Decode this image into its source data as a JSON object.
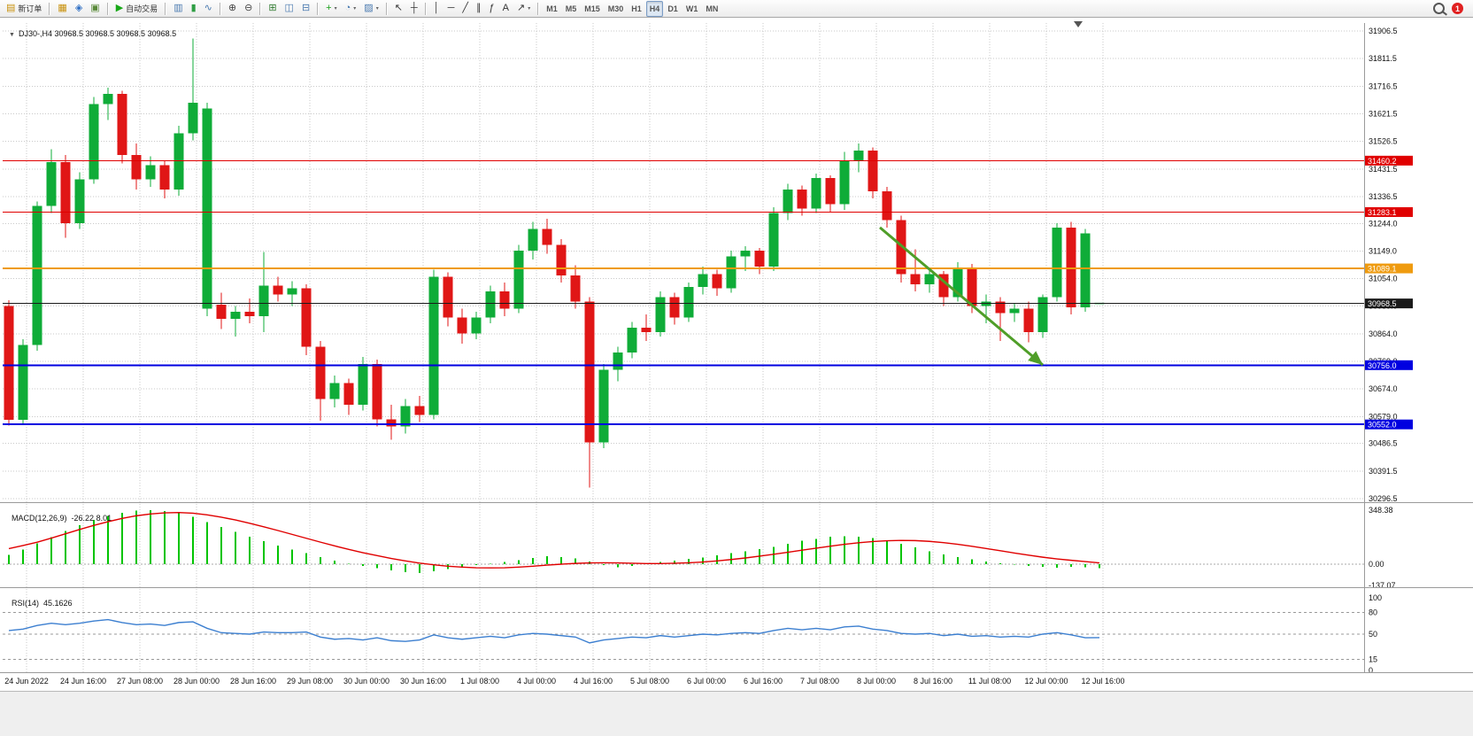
{
  "toolbar": {
    "notification_count": "1",
    "groups": [
      {
        "items": [
          {
            "name": "new-order-button",
            "icon": "new-order-icon",
            "glyph": "▤",
            "color": "#c8900a",
            "label": "新订单"
          }
        ]
      },
      {
        "items": [
          {
            "name": "market-watch-button",
            "icon": "market-watch-icon",
            "glyph": "▦",
            "color": "#c8900a"
          },
          {
            "name": "navigator-button",
            "icon": "navigator-icon",
            "glyph": "◈",
            "color": "#2f6fc4"
          },
          {
            "name": "terminal-button",
            "icon": "terminal-icon",
            "glyph": "▣",
            "color": "#5a8a3a"
          }
        ]
      },
      {
        "items": [
          {
            "name": "autotrading-button",
            "icon": "autotrading-icon",
            "glyph": "▶",
            "color": "#18a818",
            "label": "自动交易"
          }
        ]
      },
      {
        "items": [
          {
            "name": "bar-chart-button",
            "icon": "bar-chart-icon",
            "glyph": "▥",
            "color": "#4a7ab0"
          },
          {
            "name": "candlestick-chart-button",
            "icon": "candlestick-icon",
            "glyph": "▮",
            "color": "#2f9e44"
          },
          {
            "name": "line-chart-button",
            "icon": "line-chart-icon",
            "glyph": "∿",
            "color": "#4a7ab0"
          }
        ]
      },
      {
        "items": [
          {
            "name": "zoom-in-button",
            "icon": "zoom-in-icon",
            "glyph": "⊕",
            "color": "#444"
          },
          {
            "name": "zoom-out-button",
            "icon": "zoom-out-icon",
            "glyph": "⊖",
            "color": "#444"
          }
        ]
      },
      {
        "items": [
          {
            "name": "tile-windows-button",
            "icon": "tile-windows-icon",
            "glyph": "⊞",
            "color": "#2f7a2f"
          },
          {
            "name": "arrange-vertical-button",
            "icon": "arrange-vertical-icon",
            "glyph": "◫",
            "color": "#4a7ab0"
          },
          {
            "name": "arrange-horizontal-button",
            "icon": "arrange-horizontal-icon",
            "glyph": "⊟",
            "color": "#4a7ab0"
          }
        ]
      },
      {
        "items": [
          {
            "name": "indicators-button",
            "icon": "indicators-icon",
            "glyph": "+",
            "color": "#18a018",
            "caret": true
          },
          {
            "name": "periods-button",
            "icon": "periods-icon",
            "glyph": "◔",
            "color": "#4a7ab0",
            "caret": true
          },
          {
            "name": "templates-button",
            "icon": "templates-icon",
            "glyph": "▨",
            "color": "#4a7ab0",
            "caret": true
          }
        ]
      },
      {
        "items": [
          {
            "name": "cursor-button",
            "icon": "cursor-icon",
            "glyph": "↖",
            "color": "#333"
          },
          {
            "name": "crosshair-button",
            "icon": "crosshair-icon",
            "glyph": "┼",
            "color": "#333"
          }
        ]
      },
      {
        "items": [
          {
            "name": "vertical-line-button",
            "icon": "vertical-line-icon",
            "glyph": "│",
            "color": "#333"
          },
          {
            "name": "horizontal-line-button",
            "icon": "horizontal-line-icon",
            "glyph": "─",
            "color": "#333"
          },
          {
            "name": "trendline-button",
            "icon": "trendline-icon",
            "glyph": "╱",
            "color": "#333"
          },
          {
            "name": "channel-button",
            "icon": "channel-icon",
            "glyph": "∥",
            "color": "#333"
          },
          {
            "name": "fibonacci-button",
            "icon": "fibonacci-icon",
            "glyph": "ƒ",
            "color": "#333"
          },
          {
            "name": "text-button",
            "icon": "text-icon",
            "glyph": "A",
            "color": "#333"
          },
          {
            "name": "arrows-button",
            "icon": "arrows-icon",
            "glyph": "↗",
            "color": "#333",
            "caret": true
          }
        ]
      },
      {
        "items": [
          {
            "name": "timeframe-m1-button",
            "label": "M1",
            "cls": "tf"
          },
          {
            "name": "timeframe-m5-button",
            "label": "M5",
            "cls": "tf"
          },
          {
            "name": "timeframe-m15-button",
            "label": "M15",
            "cls": "tf"
          },
          {
            "name": "timeframe-m30-button",
            "label": "M30",
            "cls": "tf"
          },
          {
            "name": "timeframe-h1-button",
            "label": "H1",
            "cls": "tf"
          },
          {
            "name": "timeframe-h4-button",
            "label": "H4",
            "cls": "tf",
            "active": true
          },
          {
            "name": "timeframe-d1-button",
            "label": "D1",
            "cls": "tf"
          },
          {
            "name": "timeframe-w1-button",
            "label": "W1",
            "cls": "tf"
          },
          {
            "name": "timeframe-mn-button",
            "label": "MN",
            "cls": "tf"
          }
        ]
      }
    ]
  },
  "chart": {
    "title": "DJ30-,H4 30968.5 30968.5 30968.5 30968.5",
    "symbol": "DJ30-",
    "period": "H4",
    "ohlc": {
      "open": "30968.5",
      "high": "30968.5",
      "low": "30968.5",
      "close": "30968.5"
    }
  },
  "chart_data": {
    "type": "candlestick",
    "symbol": "DJ30-",
    "timeframe": "H4",
    "price_range": [
      30296.5,
      31906.5
    ],
    "legend_position": "none",
    "grid": true,
    "colors": {
      "bull": "#0fac38",
      "bear": "#e01616",
      "grid": "#c9c9c9",
      "macd_hist": "#00c400",
      "macd_signal": "#e00000",
      "rsi": "#3c7fd0",
      "line_red": "#e00000",
      "line_orange": "#ef9b0f",
      "line_blue": "#0000e0",
      "bid_line": "#1a1a1a",
      "arrow_green": "#4f9e28"
    },
    "time_labels": [
      "24 Jun 2022",
      "24 Jun 16:00",
      "27 Jun 08:00",
      "28 Jun 00:00",
      "28 Jun 16:00",
      "29 Jun 08:00",
      "30 Jun 00:00",
      "30 Jun 16:00",
      "1 Jul 08:00",
      "4 Jul 00:00",
      "4 Jul 16:00",
      "5 Jul 08:00",
      "6 Jul 00:00",
      "6 Jul 16:00",
      "7 Jul 08:00",
      "8 Jul 00:00",
      "8 Jul 16:00",
      "11 Jul 08:00",
      "12 Jul 00:00",
      "12 Jul 16:00"
    ],
    "price_axis_labels": [
      "31906.5",
      "31811.5",
      "31716.5",
      "31621.5",
      "31526.5",
      "31431.5",
      "31336.5",
      "31244.0",
      "31149.0",
      "31054.0",
      "30959.0",
      "30864.0",
      "30769.0",
      "30674.0",
      "30579.0",
      "30486.5",
      "30391.5",
      "30296.5"
    ],
    "horizontal_lines": [
      {
        "name": "resistance-line-31460",
        "price": 31460.2,
        "label": "31460.2",
        "color": "#e00000",
        "width": 1
      },
      {
        "name": "resistance-line-31283",
        "price": 31283.1,
        "label": "31283.1",
        "color": "#e00000",
        "width": 1
      },
      {
        "name": "pivot-line-31089",
        "price": 31089.1,
        "label": "31089.1",
        "color": "#ef9b0f",
        "width": 2
      },
      {
        "name": "bid-price-line",
        "price": 30968.5,
        "label": "30968.5",
        "color": "#1a1a1a",
        "width": 1
      },
      {
        "name": "support-line-30756",
        "price": 30756.0,
        "label": "30756.0",
        "color": "#0000e0",
        "width": 2
      },
      {
        "name": "support-line-30552",
        "price": 30552.0,
        "label": "30552.0",
        "color": "#0000e0",
        "width": 2
      }
    ],
    "trend_arrow": {
      "from_index": 61.5,
      "from_price": 31230,
      "to_index": 73,
      "to_price": 30757,
      "color": "#4f9e28"
    },
    "candles": [
      [
        30960,
        30980,
        30548,
        30568
      ],
      [
        30568,
        30845,
        30552,
        30825
      ],
      [
        30825,
        31320,
        30805,
        31305
      ],
      [
        31305,
        31500,
        31280,
        31455
      ],
      [
        31455,
        31480,
        31195,
        31245
      ],
      [
        31245,
        31420,
        31225,
        31395
      ],
      [
        31395,
        31680,
        31380,
        31655
      ],
      [
        31655,
        31712,
        31600,
        31690
      ],
      [
        31690,
        31700,
        31450,
        31480
      ],
      [
        31480,
        31520,
        31360,
        31395
      ],
      [
        31395,
        31475,
        31370,
        31445
      ],
      [
        31445,
        31460,
        31330,
        31360
      ],
      [
        31360,
        31580,
        31340,
        31555
      ],
      [
        31555,
        31880,
        31530,
        31660
      ],
      [
        30950,
        31660,
        30925,
        31640
      ],
      [
        30965,
        31005,
        30880,
        30915
      ],
      [
        30915,
        30960,
        30855,
        30940
      ],
      [
        30940,
        30985,
        30900,
        30925
      ],
      [
        30925,
        31145,
        30870,
        31030
      ],
      [
        31030,
        31060,
        30975,
        31000
      ],
      [
        31000,
        31045,
        30960,
        31020
      ],
      [
        31020,
        31035,
        30790,
        30820
      ],
      [
        30820,
        30840,
        30565,
        30640
      ],
      [
        30640,
        30720,
        30610,
        30695
      ],
      [
        30695,
        30710,
        30585,
        30620
      ],
      [
        30620,
        30785,
        30600,
        30760
      ],
      [
        30760,
        30775,
        30545,
        30570
      ],
      [
        30570,
        30620,
        30500,
        30545
      ],
      [
        30545,
        30640,
        30520,
        30615
      ],
      [
        30615,
        30650,
        30560,
        30585
      ],
      [
        30585,
        31085,
        30570,
        31060
      ],
      [
        31060,
        31075,
        30890,
        30920
      ],
      [
        30920,
        30950,
        30830,
        30865
      ],
      [
        30865,
        30940,
        30845,
        30920
      ],
      [
        30920,
        31030,
        30900,
        31010
      ],
      [
        31010,
        31040,
        30925,
        30950
      ],
      [
        30950,
        31170,
        30935,
        31150
      ],
      [
        31150,
        31250,
        31120,
        31225
      ],
      [
        31225,
        31260,
        31140,
        31170
      ],
      [
        31170,
        31190,
        31040,
        31065
      ],
      [
        31065,
        31100,
        30950,
        30975
      ],
      [
        30975,
        30990,
        30335,
        30490
      ],
      [
        30490,
        30760,
        30470,
        30740
      ],
      [
        30740,
        30820,
        30700,
        30800
      ],
      [
        30800,
        30905,
        30780,
        30885
      ],
      [
        30885,
        30930,
        30840,
        30870
      ],
      [
        30870,
        31010,
        30855,
        30990
      ],
      [
        30990,
        31005,
        30895,
        30920
      ],
      [
        30920,
        31040,
        30905,
        31025
      ],
      [
        31025,
        31095,
        31000,
        31070
      ],
      [
        31070,
        31085,
        30995,
        31020
      ],
      [
        31020,
        31150,
        31005,
        31130
      ],
      [
        31130,
        31165,
        31080,
        31150
      ],
      [
        31150,
        31160,
        31070,
        31095
      ],
      [
        31095,
        31300,
        31080,
        31280
      ],
      [
        31280,
        31380,
        31255,
        31360
      ],
      [
        31360,
        31375,
        31270,
        31295
      ],
      [
        31295,
        31415,
        31280,
        31400
      ],
      [
        31400,
        31410,
        31285,
        31310
      ],
      [
        31310,
        31490,
        31290,
        31460
      ],
      [
        31460,
        31520,
        31420,
        31495
      ],
      [
        31495,
        31505,
        31330,
        31355
      ],
      [
        31355,
        31370,
        31230,
        31255
      ],
      [
        31255,
        31270,
        31040,
        31070
      ],
      [
        31070,
        31155,
        31010,
        31035
      ],
      [
        31035,
        31090,
        31005,
        31070
      ],
      [
        31070,
        31080,
        30960,
        30990
      ],
      [
        30990,
        31110,
        30975,
        31090
      ],
      [
        31090,
        31105,
        30935,
        30960
      ],
      [
        30960,
        31000,
        30900,
        30975
      ],
      [
        30975,
        30990,
        30840,
        30935
      ],
      [
        30935,
        30970,
        30905,
        30950
      ],
      [
        30950,
        30975,
        30835,
        30870
      ],
      [
        30870,
        31000,
        30850,
        30990
      ],
      [
        30990,
        31245,
        30975,
        31230
      ],
      [
        31230,
        31250,
        30930,
        30955
      ],
      [
        30955,
        31225,
        30940,
        31210
      ],
      [
        30968.5,
        30968.5,
        30968.5,
        30968.5
      ]
    ],
    "macd": {
      "label": "MACD(12,26,9)",
      "values_text": "-26.22 8.01",
      "axis_labels": [
        "348.38",
        "0.00",
        "-137.07"
      ],
      "histogram": [
        60,
        95,
        135,
        175,
        215,
        250,
        285,
        310,
        330,
        345,
        348,
        342,
        328,
        305,
        272,
        240,
        208,
        178,
        148,
        120,
        94,
        70,
        46,
        24,
        4,
        -12,
        -26,
        -40,
        -50,
        -56,
        -46,
        -32,
        -18,
        -6,
        4,
        14,
        26,
        40,
        50,
        46,
        36,
        18,
        -6,
        -20,
        -10,
        4,
        14,
        24,
        34,
        44,
        56,
        70,
        84,
        96,
        112,
        130,
        150,
        164,
        176,
        181,
        178,
        168,
        152,
        132,
        108,
        84,
        62,
        46,
        30,
        16,
        6,
        -4,
        -12,
        -18,
        -22,
        -16,
        -20,
        -26.22
      ],
      "signal": [
        100,
        120,
        142,
        168,
        196,
        224,
        250,
        274,
        295,
        312,
        324,
        331,
        333,
        329,
        318,
        303,
        285,
        264,
        241,
        217,
        192,
        167,
        142,
        118,
        95,
        74,
        55,
        37,
        21,
        7,
        -4,
        -13,
        -19,
        -23,
        -24,
        -23,
        -19,
        -13,
        -6,
        0,
        5,
        8,
        9,
        8,
        6,
        4,
        4,
        6,
        9,
        14,
        21,
        30,
        40,
        52,
        64,
        77,
        90,
        103,
        116,
        128,
        138,
        146,
        151,
        153,
        152,
        147,
        139,
        128,
        115,
        101,
        87,
        72,
        58,
        45,
        34,
        25,
        17,
        8.01
      ]
    },
    "rsi": {
      "label": "RSI(14)",
      "value_text": "45.1626",
      "levels": [
        80,
        50,
        15
      ],
      "axis_labels": [
        "100",
        "80",
        "50",
        "15",
        "0"
      ],
      "values": [
        55,
        57,
        62,
        65,
        63,
        65,
        68,
        70,
        66,
        63,
        64,
        62,
        66,
        67,
        58,
        52,
        51,
        50,
        53,
        52,
        52,
        53,
        46,
        43,
        44,
        42,
        45,
        41,
        40,
        42,
        49,
        45,
        43,
        45,
        47,
        45,
        49,
        51,
        50,
        48,
        46,
        38,
        42,
        44,
        46,
        45,
        48,
        46,
        48,
        50,
        49,
        51,
        52,
        51,
        55,
        58,
        56,
        58,
        56,
        60,
        61,
        57,
        55,
        51,
        50,
        51,
        48,
        50,
        47,
        48,
        46,
        47,
        46,
        50,
        52,
        49,
        45,
        45.16
      ]
    }
  }
}
